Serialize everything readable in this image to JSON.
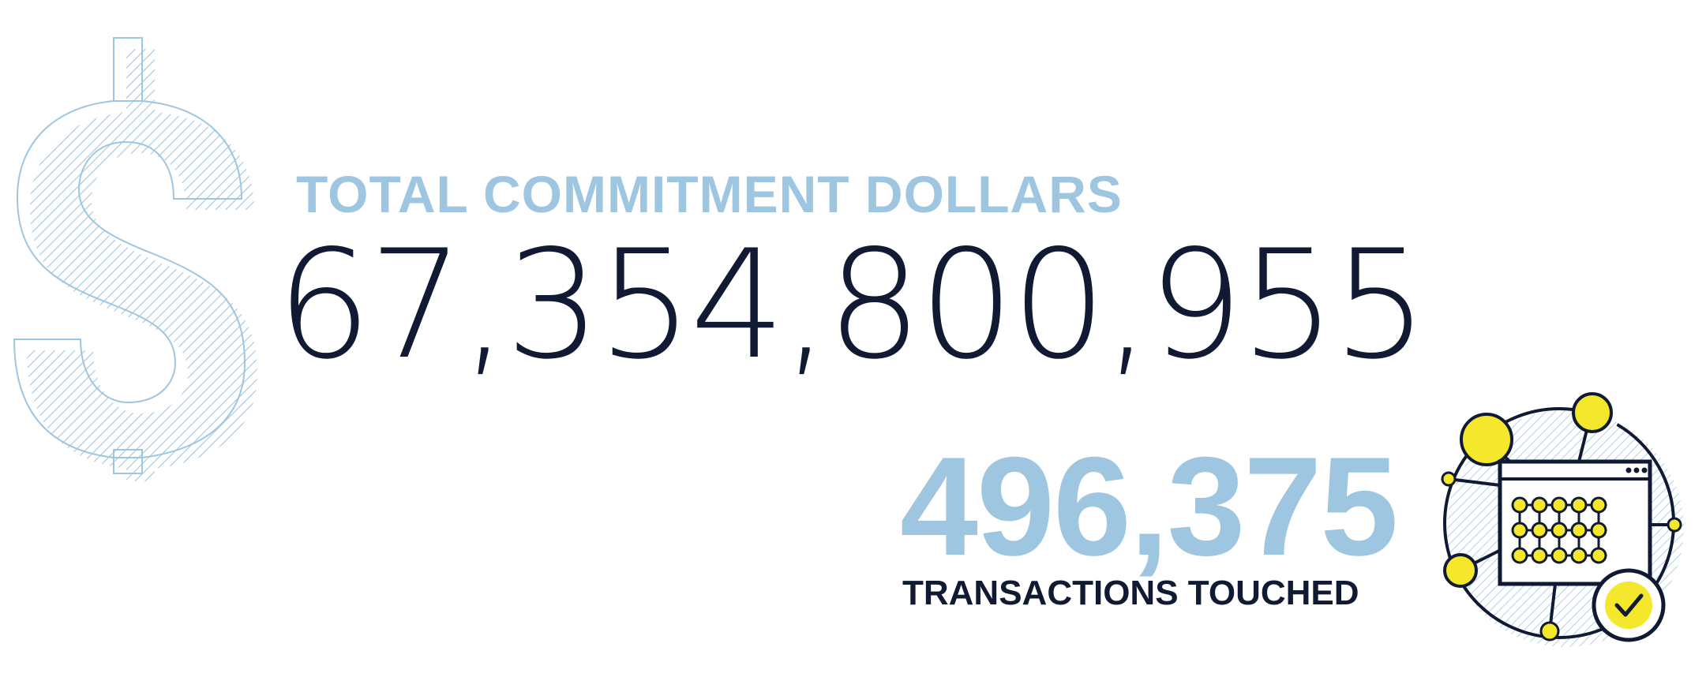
{
  "commitment": {
    "label": "TOTAL COMMITMENT DOLLARS",
    "value": "67,354,800,955"
  },
  "transactions": {
    "value": "496,375",
    "label": "TRANSACTIONS TOUCHED"
  },
  "icons": {
    "currency": "dollar-sign-icon",
    "illustration": "transaction-network-icon"
  },
  "colors": {
    "accent_blue": "#9fc6e0",
    "navy": "#111a33",
    "highlight_yellow": "#f5e72c"
  }
}
